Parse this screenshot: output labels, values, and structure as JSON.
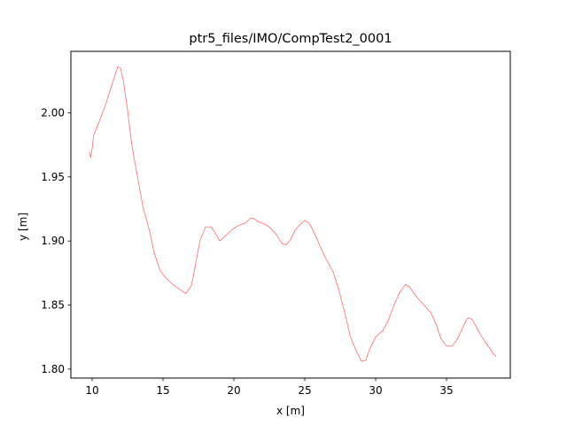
{
  "chart_data": {
    "type": "line",
    "title": "ptr5_files/IMO/CompTest2_0001",
    "xlabel": "x [m]",
    "ylabel": "y [m]",
    "xlim": [
      8.5,
      39.5
    ],
    "ylim": [
      1.793,
      2.048
    ],
    "xticks": [
      10,
      15,
      20,
      25,
      30,
      35
    ],
    "yticks": [
      1.8,
      1.85,
      1.9,
      1.95,
      2.0
    ],
    "xtick_labels": [
      "10",
      "15",
      "20",
      "25",
      "30",
      "35"
    ],
    "ytick_labels": [
      "1.80",
      "1.85",
      "1.90",
      "1.95",
      "2.00"
    ],
    "grid": false,
    "series": [
      {
        "color": "#ff6b6b",
        "x": [
          9.8,
          9.9,
          10.0,
          10.1,
          10.3,
          10.6,
          11.0,
          11.4,
          11.8,
          12.0,
          12.2,
          12.5,
          12.8,
          13.2,
          13.6,
          14.0,
          14.4,
          14.8,
          15.0,
          15.3,
          15.7,
          16.2,
          16.6,
          17.0,
          17.3,
          17.6,
          18.0,
          18.4,
          18.7,
          19.0,
          19.3,
          19.6,
          19.9,
          20.3,
          20.8,
          21.2,
          21.5,
          21.7,
          22.0,
          22.5,
          23.0,
          23.4,
          23.7,
          24.0,
          24.3,
          24.6,
          25.0,
          25.3,
          25.6,
          26.0,
          26.5,
          27.0,
          27.4,
          27.8,
          28.2,
          28.6,
          29.0,
          29.3,
          29.6,
          30.0,
          30.5,
          30.9,
          31.3,
          31.7,
          32.1,
          32.4,
          32.7,
          33.0,
          33.4,
          33.9,
          34.3,
          34.6,
          35.0,
          35.4,
          35.8,
          36.2,
          36.5,
          36.8,
          37.1,
          37.5,
          38.0,
          38.3,
          38.5
        ],
        "y": [
          1.97,
          1.965,
          1.972,
          1.982,
          1.988,
          1.996,
          2.008,
          2.022,
          2.036,
          2.035,
          2.025,
          2.002,
          1.975,
          1.95,
          1.926,
          1.91,
          1.89,
          1.877,
          1.874,
          1.87,
          1.866,
          1.862,
          1.859,
          1.865,
          1.882,
          1.9,
          1.911,
          1.911,
          1.906,
          1.9,
          1.903,
          1.906,
          1.909,
          1.912,
          1.914,
          1.918,
          1.917,
          1.915,
          1.914,
          1.911,
          1.905,
          1.898,
          1.897,
          1.901,
          1.908,
          1.912,
          1.916,
          1.914,
          1.908,
          1.898,
          1.886,
          1.876,
          1.862,
          1.845,
          1.826,
          1.815,
          1.806,
          1.807,
          1.816,
          1.825,
          1.83,
          1.838,
          1.85,
          1.86,
          1.866,
          1.864,
          1.859,
          1.855,
          1.85,
          1.844,
          1.834,
          1.824,
          1.818,
          1.818,
          1.824,
          1.834,
          1.84,
          1.839,
          1.833,
          1.825,
          1.817,
          1.812,
          1.81
        ]
      }
    ]
  }
}
